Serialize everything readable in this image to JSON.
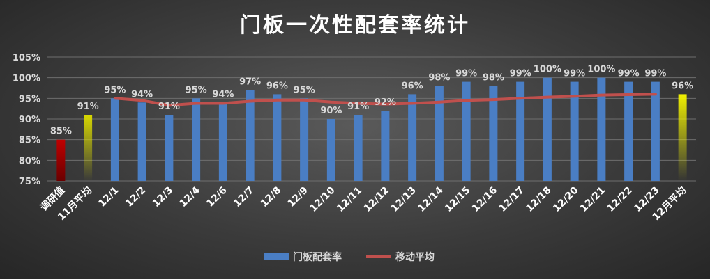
{
  "chart_data": {
    "type": "bar",
    "title": "门板一次性配套率统计",
    "categories": [
      "调研值",
      "11月平均",
      "12/1",
      "12/2",
      "12/3",
      "12/4",
      "12/6",
      "12/7",
      "12/8",
      "12/9",
      "12/10",
      "12/11",
      "12/12",
      "12/13",
      "12/14",
      "12/15",
      "12/16",
      "12/17",
      "12/18",
      "12/20",
      "12/21",
      "12/22",
      "12/23",
      "12月平均"
    ],
    "series": [
      {
        "name": "门板配套率",
        "type": "bar",
        "values": [
          85,
          91,
          95,
          94,
          91,
          95,
          94,
          97,
          96,
          95,
          90,
          91,
          92,
          96,
          98,
          99,
          98,
          99,
          100,
          99,
          100,
          99,
          99,
          96
        ],
        "labels": [
          "85%",
          "91%",
          "95%",
          "94%",
          "91%",
          "95%",
          "94%",
          "97%",
          "96%",
          "95%",
          "90%",
          "91%",
          "92%",
          "96%",
          "98%",
          "99%",
          "98%",
          "99%",
          "100%",
          "99%",
          "100%",
          "99%",
          "99%",
          "96%"
        ],
        "color": "#4a7ec4",
        "highlight_colors": {
          "调研值": "#c00000",
          "11月平均": "#d8d800",
          "12月平均": "#f0f000"
        }
      },
      {
        "name": "移动平均",
        "type": "line",
        "color": "#c0504d",
        "x": [
          "12/1",
          "12/2",
          "12/3",
          "12/4",
          "12/6",
          "12/7",
          "12/8",
          "12/9",
          "12/10",
          "12/11",
          "12/12",
          "12/13",
          "12/14",
          "12/15",
          "12/16",
          "12/17",
          "12/18",
          "12/20",
          "12/21",
          "12/22",
          "12/23"
        ],
        "values": [
          95,
          94.5,
          93.3,
          93.8,
          93.8,
          94.3,
          94.6,
          94.6,
          94.1,
          93.8,
          93.6,
          93.8,
          94.1,
          94.5,
          94.7,
          95.0,
          95.3,
          95.5,
          95.8,
          95.9,
          96.0
        ]
      }
    ],
    "yticks": [
      "75%",
      "80%",
      "85%",
      "90%",
      "95%",
      "100%",
      "105%"
    ],
    "ylim": [
      75,
      105
    ],
    "ystep": 5,
    "grid": true,
    "legend": "bottom"
  }
}
